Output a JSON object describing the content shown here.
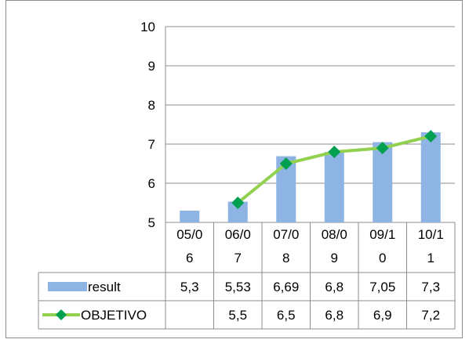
{
  "chart_data": {
    "type": "bar",
    "categories": [
      [
        "05/0",
        "6"
      ],
      [
        "06/0",
        "7"
      ],
      [
        "07/0",
        "8"
      ],
      [
        "08/0",
        "9"
      ],
      [
        "09/1",
        "0"
      ],
      [
        "10/1",
        "1"
      ]
    ],
    "ylim": [
      5,
      10
    ],
    "yticks": [
      "5",
      "6",
      "7",
      "8",
      "9",
      "10"
    ],
    "grid": true,
    "legend_placement": "data-table",
    "series": [
      {
        "name": "result",
        "render": "bar",
        "color": "#8eb4e3",
        "values": [
          5.3,
          5.53,
          6.69,
          6.8,
          7.05,
          7.3
        ],
        "labels": [
          "5,3",
          "5,53",
          "6,69",
          "6,8",
          "7,05",
          "7,3"
        ]
      },
      {
        "name": "OBJETIVO",
        "render": "line",
        "color": "#92d050",
        "marker_color": "#00a050",
        "values": [
          null,
          5.5,
          6.5,
          6.8,
          6.9,
          7.2
        ],
        "labels": [
          "",
          "5,5",
          "6,5",
          "6,8",
          "6,9",
          "7,2"
        ]
      }
    ]
  }
}
